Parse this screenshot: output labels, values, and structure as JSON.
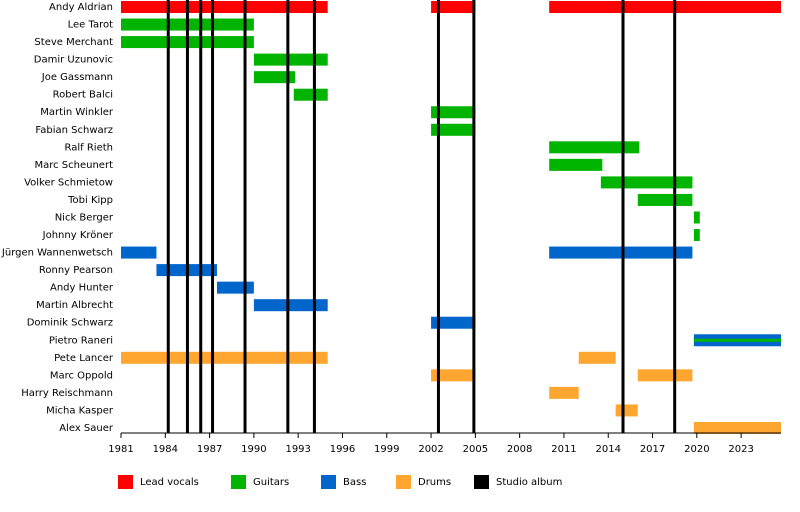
{
  "chart_data": {
    "type": "timeline",
    "categories": [
      "Andy Aldrian",
      "Lee Tarot",
      "Steve Merchant",
      "Damir Uzunovic",
      "Joe Gassmann",
      "Robert Balci",
      "Martin Winkler",
      "Fabian Schwarz",
      "Ralf Rieth",
      "Marc Scheunert",
      "Volker Schmietow",
      "Tobi Kipp",
      "Nick Berger",
      "Johnny Kröner",
      "Jürgen Wannenwetsch",
      "Ronny Pearson",
      "Andy Hunter",
      "Martin Albrecht",
      "Dominik Schwarz",
      "Pietro Raneri",
      "Pete Lancer",
      "Marc Oppold",
      "Harry Reischmann",
      "Micha Kasper",
      "Alex Sauer"
    ],
    "series": [
      {
        "name": "Lead vocals",
        "color": "#ff0000",
        "values": [
          [
            [
              1981,
              1995
            ],
            [
              2002,
              2005
            ],
            [
              2010,
              2025.7
            ]
          ],
          null,
          null,
          null,
          null,
          null,
          null,
          null,
          null,
          null,
          null,
          null,
          null,
          null,
          null,
          null,
          null,
          null,
          null,
          null,
          null,
          null,
          null,
          null,
          null
        ]
      },
      {
        "name": "Guitars",
        "color": "#00b400",
        "values": [
          null,
          [
            [
              1981,
              1990
            ]
          ],
          [
            [
              1981,
              1990
            ]
          ],
          [
            [
              1990,
              1995
            ]
          ],
          [
            [
              1990,
              1992.8
            ]
          ],
          [
            [
              1992.7,
              1995
            ]
          ],
          [
            [
              2002,
              2005
            ]
          ],
          [
            [
              2002,
              2005
            ]
          ],
          [
            [
              2010,
              2016.1
            ]
          ],
          [
            [
              2010,
              2013.6
            ]
          ],
          [
            [
              2013.5,
              2019.7
            ]
          ],
          [
            [
              2016,
              2019.7
            ]
          ],
          [
            [
              2019.8,
              2020.2
            ]
          ],
          [
            [
              2019.8,
              2020.2
            ]
          ],
          null,
          null,
          null,
          null,
          null,
          [
            [
              2019.8,
              2025.7
            ]
          ],
          null,
          null,
          null,
          null,
          null
        ]
      },
      {
        "name": "Bass",
        "color": "#0066cc",
        "values": [
          null,
          null,
          null,
          null,
          null,
          null,
          null,
          null,
          null,
          null,
          null,
          null,
          null,
          null,
          [
            [
              1981,
              1983.4
            ],
            [
              2010,
              2019.7
            ]
          ],
          [
            [
              1983.4,
              1987.5
            ]
          ],
          [
            [
              1987.5,
              1990
            ]
          ],
          [
            [
              1990,
              1995
            ]
          ],
          [
            [
              2002,
              2005
            ]
          ],
          [
            [
              2019.8,
              2025.7
            ]
          ],
          null,
          null,
          null,
          null,
          null
        ]
      },
      {
        "name": "Drums",
        "color": "#ffa630",
        "values": [
          null,
          null,
          null,
          null,
          null,
          null,
          null,
          null,
          null,
          null,
          null,
          null,
          null,
          null,
          null,
          null,
          null,
          null,
          null,
          null,
          [
            [
              1981,
              1995
            ],
            [
              2012,
              2014.5
            ]
          ],
          [
            [
              2002,
              2005
            ],
            [
              2016,
              2019.7
            ]
          ],
          [
            [
              2010,
              2012
            ]
          ],
          [
            [
              2014.5,
              2016
            ]
          ],
          [
            [
              2019.8,
              2025.7
            ]
          ]
        ]
      }
    ],
    "albums": {
      "name": "Studio album",
      "color": "#000000",
      "x": [
        1984.2,
        1985.5,
        1986.4,
        1987.2,
        1989.4,
        1992.3,
        1994.1,
        2002.5,
        2004.9,
        2015,
        2018.5
      ]
    },
    "xlim": [
      1981,
      2025.7
    ],
    "xticks": [
      1981,
      1984,
      1987,
      1990,
      1993,
      1996,
      1999,
      2002,
      2005,
      2008,
      2011,
      2014,
      2017,
      2020,
      2023
    ]
  }
}
